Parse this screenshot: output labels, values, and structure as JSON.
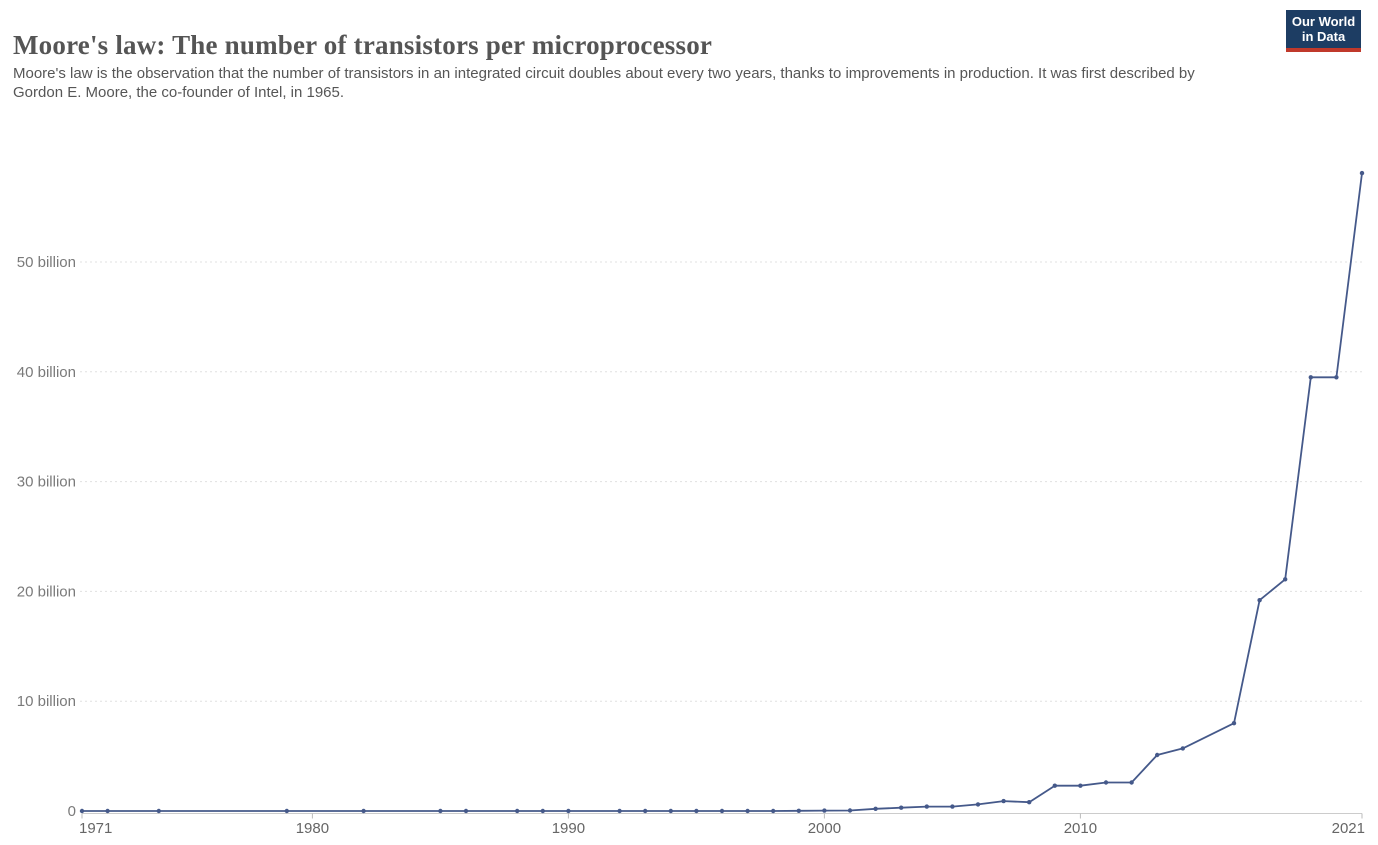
{
  "header": {
    "title": "Moore's law: The number of transistors per microprocessor",
    "subtitle": "Moore's law is the observation that the number of transistors in an integrated circuit doubles about every two years, thanks to improvements in production. It was first described by Gordon E. Moore, the co-founder of Intel, in 1965."
  },
  "logo": {
    "line1": "Our World",
    "line2": "in Data",
    "bg_color": "#1d3d63",
    "bar_color": "#c0392b",
    "text_color": "#ffffff"
  },
  "chart_data": {
    "type": "line",
    "title": "Moore's law: The number of transistors per microprocessor",
    "xlabel": "",
    "ylabel": "",
    "unit": "billions of transistors",
    "legend": "none",
    "grid": "dashed horizontal gridlines",
    "xlim": [
      1971,
      2021
    ],
    "ylim": [
      0,
      60
    ],
    "x": [
      1971,
      1972,
      1974,
      1979,
      1982,
      1985,
      1986,
      1988,
      1989,
      1990,
      1992,
      1993,
      1994,
      1995,
      1996,
      1997,
      1998,
      1999,
      2000,
      2001,
      2002,
      2003,
      2004,
      2005,
      2006,
      2007,
      2008,
      2009,
      2010,
      2011,
      2012,
      2013,
      2014,
      2016,
      2017,
      2018,
      2019,
      2020,
      2021
    ],
    "series": [
      {
        "name": "Transistors per microprocessor (billions)",
        "values": [
          0,
          0,
          0,
          0,
          0,
          0,
          0,
          0,
          0,
          0,
          0,
          0,
          0,
          0,
          0,
          0,
          0,
          0.02,
          0.04,
          0.05,
          0.2,
          0.3,
          0.4,
          0.4,
          0.6,
          0.9,
          0.8,
          2.3,
          2.3,
          2.6,
          2.6,
          5.1,
          5.7,
          8.0,
          19.2,
          21.1,
          39.5,
          39.5,
          58.1
        ]
      }
    ],
    "x_tick_years": [
      1971,
      1980,
      1990,
      2000,
      2010,
      2021
    ],
    "x_tick_labels": [
      "1971",
      "1980",
      "1990",
      "2000",
      "2010",
      "2021"
    ],
    "y_tick_values": [
      0,
      10,
      20,
      30,
      40,
      50
    ],
    "y_tick_labels": [
      "0",
      "10 billion",
      "20 billion",
      "30 billion",
      "40 billion",
      "50 billion"
    ],
    "line_color": "#45598a",
    "marker_color": "#45598a",
    "grid_color": "#e0e0e0",
    "axis_line_color": "#cccccc",
    "tick_mark_color": "#bbbbbb",
    "x_tick_label_color": "#666666",
    "y_tick_label_color": "#7a7a7a"
  }
}
